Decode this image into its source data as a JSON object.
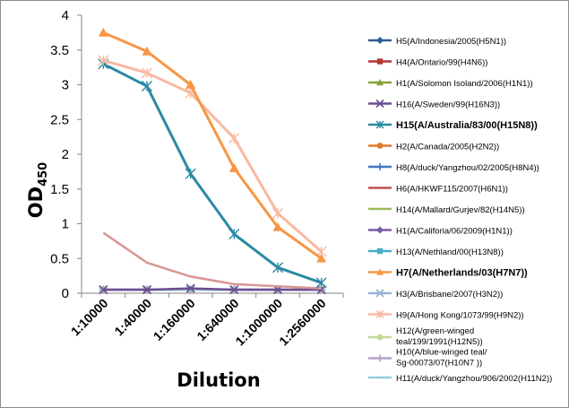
{
  "chart_data": {
    "type": "line",
    "title": "",
    "xlabel": "Dilution",
    "ylabel": "OD",
    "ylabel_sub": "450",
    "ylim": [
      0,
      4
    ],
    "yticks": [
      "0",
      "0.5",
      "1",
      "1.5",
      "2",
      "2.5",
      "3",
      "3.5",
      "4"
    ],
    "categories": [
      "1:10000",
      "1:40000",
      "1:160000",
      "1:640000",
      "1:1000000",
      "1:2560000"
    ],
    "legend_position": "right",
    "series": [
      {
        "name": "H5(A/Indonesia/2005(H5N1))",
        "color": "#2e5c94",
        "marker": "diamond",
        "bold": false,
        "values": [
          0.05,
          0.05,
          0.05,
          0.05,
          0.05,
          0.05
        ]
      },
      {
        "name": "H4(A/Ontario/99(H4N6))",
        "color": "#b33430",
        "marker": "square",
        "bold": false,
        "values": [
          0.05,
          0.05,
          0.05,
          0.05,
          0.05,
          0.05
        ]
      },
      {
        "name": "H1(A/Solomon Isoland/2006(H1N1))",
        "color": "#85a33a",
        "marker": "triangle",
        "bold": false,
        "values": [
          0.05,
          0.05,
          0.05,
          0.05,
          0.05,
          0.05
        ]
      },
      {
        "name": "H16(A/Sweden/99(H16N3))",
        "color": "#6e4c92",
        "marker": "x",
        "bold": false,
        "values": [
          0.05,
          0.05,
          0.07,
          0.05,
          0.05,
          0.05
        ]
      },
      {
        "name": "H15(A/Australia/83/00(H15N8))",
        "color": "#2b8aa3",
        "marker": "star",
        "bold": true,
        "values": [
          3.3,
          2.98,
          1.72,
          0.85,
          0.37,
          0.15
        ]
      },
      {
        "name": "H2(A/Canada/2005(H2N2))",
        "color": "#e07a2d",
        "marker": "circle",
        "bold": false,
        "values": [
          0.05,
          0.05,
          0.05,
          0.05,
          0.05,
          0.05
        ]
      },
      {
        "name": "H8(A/duck/Yangzhou/02/2005(H8N4))",
        "color": "#3f77c1",
        "marker": "plus",
        "bold": false,
        "values": [
          0.05,
          0.05,
          0.05,
          0.05,
          0.05,
          0.05
        ]
      },
      {
        "name": "H6(A/HKWF115/2007(H6N1))",
        "color": "#c0504d",
        "marker": "dash",
        "bold": false,
        "values": [
          0.05,
          0.05,
          0.05,
          0.05,
          0.05,
          0.05
        ]
      },
      {
        "name": "H14(A/Mallard/Gurjev/82(H14N5))",
        "color": "#9bbb59",
        "marker": "dash",
        "bold": false,
        "values": [
          0.05,
          0.05,
          0.05,
          0.05,
          0.05,
          0.05
        ]
      },
      {
        "name": "H1(A/Califoria/06/2009(H1N1))",
        "color": "#7b5ba6",
        "marker": "diamond",
        "bold": false,
        "values": [
          0.05,
          0.05,
          0.05,
          0.05,
          0.05,
          0.05
        ]
      },
      {
        "name": "H13(A/Nethland/00(H13N8))",
        "color": "#4bacc6",
        "marker": "square",
        "bold": false,
        "values": [
          0.05,
          0.05,
          0.05,
          0.05,
          0.05,
          0.05
        ]
      },
      {
        "name": "H7(A/Netherlands/03(H7N7))",
        "color": "#f79646",
        "marker": "triangle",
        "bold": true,
        "values": [
          3.75,
          3.48,
          3.0,
          1.8,
          0.95,
          0.5
        ]
      },
      {
        "name": "H3(A/Brisbane/2007(H3N2))",
        "color": "#95b3d7",
        "marker": "x",
        "bold": false,
        "values": [
          0.05,
          0.05,
          0.05,
          0.05,
          0.05,
          0.05
        ]
      },
      {
        "name": "H9(A/Hong Kong/1073/99(H9N2))",
        "color": "#f8b9a0",
        "marker": "star",
        "bold": false,
        "values": [
          3.35,
          3.17,
          2.88,
          2.23,
          1.15,
          0.6
        ]
      },
      {
        "name": "H12(A/green-winged teal/199/1991(H12N5))",
        "color": "#c4d79b",
        "marker": "circle",
        "bold": false,
        "values": [
          0.05,
          0.05,
          0.05,
          0.05,
          0.05,
          0.05
        ]
      },
      {
        "name": "H10(A/blue-winged teal/Sg-00073/07(H10N7 ))",
        "color": "#b3a2c7",
        "marker": "plus",
        "bold": false,
        "values": [
          0.05,
          0.05,
          0.05,
          0.05,
          0.05,
          0.05
        ]
      },
      {
        "name": "H11(A/duck/Yangzhou/906/2002(H11N2))",
        "color": "#93cddd",
        "marker": "dash",
        "bold": false,
        "values": [
          0.05,
          0.05,
          0.05,
          0.05,
          0.05,
          0.05
        ]
      },
      {
        "name": "",
        "color": "#d99694",
        "marker": "none",
        "bold": false,
        "values": [
          0.87,
          0.44,
          0.24,
          0.13,
          0.1,
          0.07
        ]
      }
    ]
  }
}
